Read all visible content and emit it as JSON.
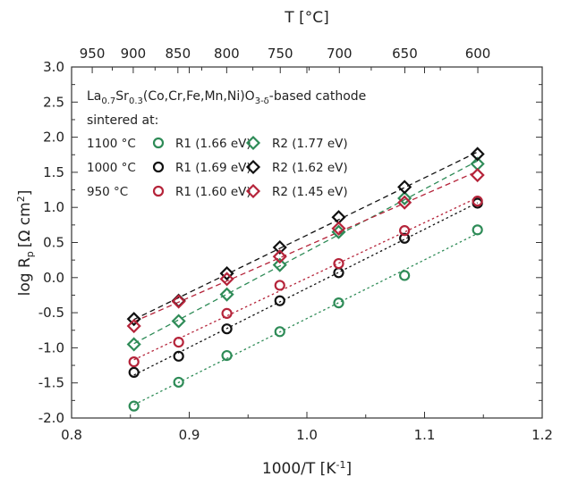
{
  "chart_data": {
    "type": "scatter",
    "xlabel": "1000/T [K",
    "xlabel_sup": "-1",
    "x2label": "T [°C]",
    "ylabel": "log R",
    "ylabel_sub": "p",
    "ylabel_unit": "[Ω cm",
    "ylabel_unit_sup": "2",
    "ylabel_unit_end": "]",
    "xlim": [
      0.8,
      1.2
    ],
    "ylim": [
      -2.0,
      3.0
    ],
    "x_ticks": [
      "0.8",
      "0.9",
      "1.0",
      "1.1",
      "1.2"
    ],
    "y_ticks": [
      "-2.0",
      "-1.5",
      "-1.0",
      "-0.5",
      "0.0",
      "0.5",
      "1.0",
      "1.5",
      "2.0",
      "2.5",
      "3.0"
    ],
    "top_ticks": [
      "950",
      "900",
      "850",
      "800",
      "750",
      "700",
      "650",
      "600"
    ],
    "annotation": {
      "prefix": "La",
      "sub1": "0.7",
      "mid": "Sr",
      "sub2": "0.3",
      "body": "(Co,Cr,Fe,Mn,Ni)O",
      "sub3": "3-δ",
      "suffix": "-based cathode",
      "line2": "sintered at:"
    },
    "legend_rows": [
      "1100 °C",
      "1000 °C",
      "950 °C"
    ],
    "series": [
      {
        "name": "R1 (1.66 eV)",
        "group": "1100 °C",
        "marker": "circle",
        "color": "#2e8b57",
        "x": [
          0.853,
          0.891,
          0.932,
          0.977,
          1.027,
          1.083,
          1.145
        ],
        "y": [
          -1.83,
          -1.49,
          -1.11,
          -0.77,
          -0.36,
          0.03,
          0.68
        ]
      },
      {
        "name": "R2 (1.77 eV)",
        "group": "1100 °C",
        "marker": "diamond",
        "color": "#2e8b57",
        "x": [
          0.853,
          0.891,
          0.932,
          0.977,
          1.027,
          1.083,
          1.145
        ],
        "y": [
          -0.95,
          -0.62,
          -0.24,
          0.18,
          0.65,
          1.13,
          1.62
        ]
      },
      {
        "name": "R1 (1.69 eV)",
        "group": "1000 °C",
        "marker": "circle",
        "color": "#111111",
        "x": [
          0.853,
          0.891,
          0.932,
          0.977,
          1.027,
          1.083,
          1.145
        ],
        "y": [
          -1.35,
          -1.12,
          -0.73,
          -0.33,
          0.07,
          0.56,
          1.06
        ]
      },
      {
        "name": "R2 (1.62 eV)",
        "group": "1000 °C",
        "marker": "diamond",
        "color": "#111111",
        "x": [
          0.853,
          0.891,
          0.932,
          0.977,
          1.027,
          1.083,
          1.145
        ],
        "y": [
          -0.59,
          -0.33,
          0.06,
          0.43,
          0.86,
          1.29,
          1.76
        ]
      },
      {
        "name": "R1 (1.60 eV)",
        "group": "950 °C",
        "marker": "circle",
        "color": "#b5243a",
        "x": [
          0.853,
          0.891,
          0.932,
          0.977,
          1.027,
          1.083,
          1.145
        ],
        "y": [
          -1.2,
          -0.92,
          -0.51,
          -0.11,
          0.2,
          0.67,
          1.09
        ]
      },
      {
        "name": "R2 (1.45 eV)",
        "group": "950 °C",
        "marker": "diamond",
        "color": "#b5243a",
        "x": [
          0.853,
          0.891,
          0.932,
          0.977,
          1.027,
          1.083,
          1.145
        ],
        "y": [
          -0.69,
          -0.34,
          -0.02,
          0.3,
          0.7,
          1.07,
          1.46
        ]
      }
    ],
    "grid": false,
    "legend_position": "top-left"
  }
}
